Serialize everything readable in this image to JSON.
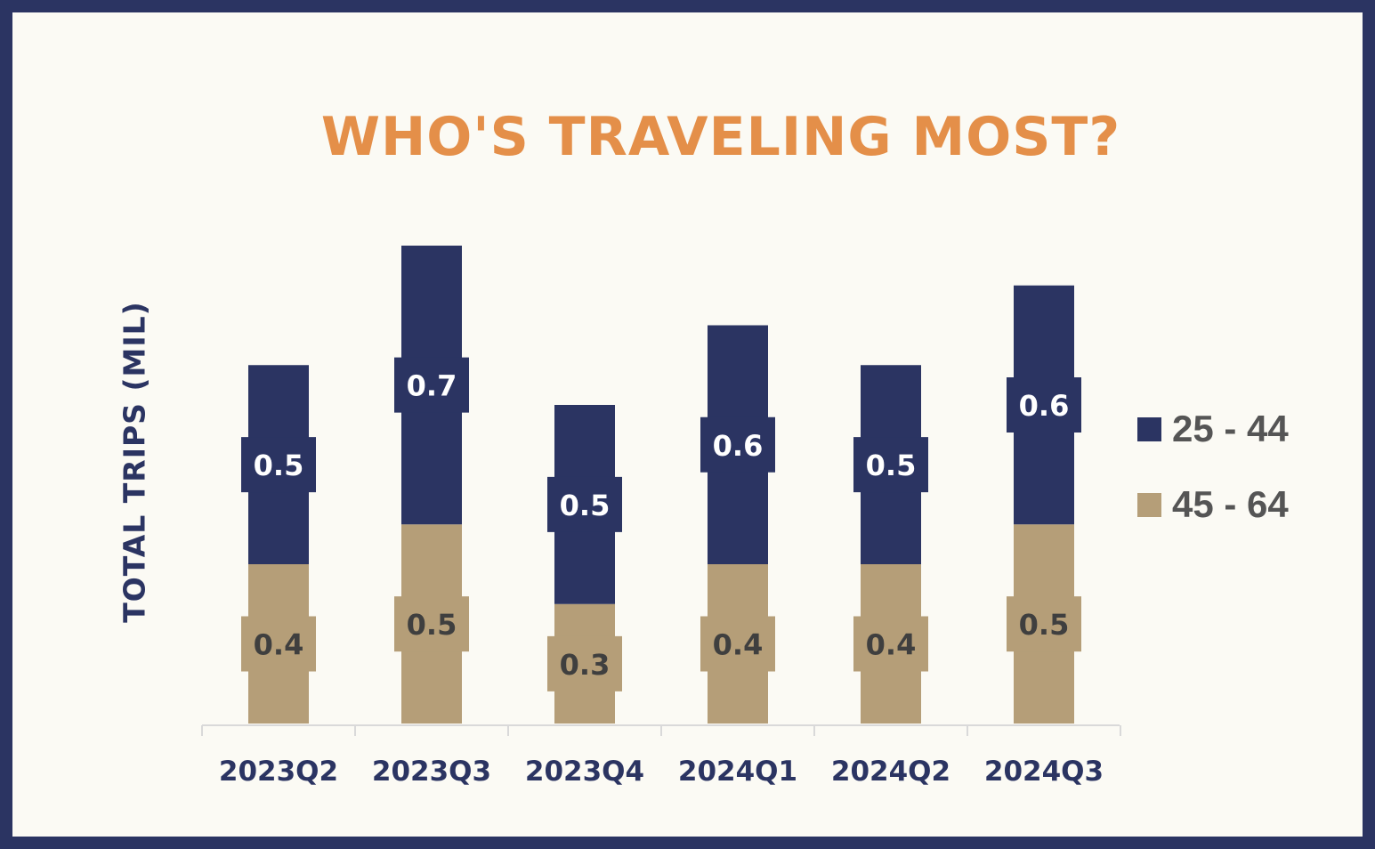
{
  "chart_data": {
    "type": "bar",
    "stacked": true,
    "title": "WHO'S TRAVELING MOST?",
    "ylabel": "TOTAL TRIPS (MIL)",
    "xlabel": "",
    "categories": [
      "2023Q2",
      "2023Q3",
      "2023Q4",
      "2024Q1",
      "2024Q2",
      "2024Q3"
    ],
    "series": [
      {
        "name": "45 - 64",
        "color": "#b59e78",
        "label_color": "#3f3f3f",
        "values": [
          0.4,
          0.5,
          0.3,
          0.4,
          0.4,
          0.5
        ],
        "labels": [
          "0.4",
          "0.5",
          "0.3",
          "0.4",
          "0.4",
          "0.5"
        ]
      },
      {
        "name": "25 - 44",
        "color": "#2b3462",
        "label_color": "#ffffff",
        "values": [
          0.5,
          0.7,
          0.5,
          0.6,
          0.5,
          0.6
        ],
        "labels": [
          "0.5",
          "0.7",
          "0.5",
          "0.6",
          "0.5",
          "0.6"
        ]
      }
    ],
    "legend_position": "right",
    "grid": false,
    "ylim": [
      0,
      1.2
    ]
  },
  "colors": {
    "frame": "#2b3462",
    "background": "#fbfaf4",
    "title": "#e48f49",
    "axis_text": "#2b3462",
    "axis_line": "#d9d9d9"
  }
}
